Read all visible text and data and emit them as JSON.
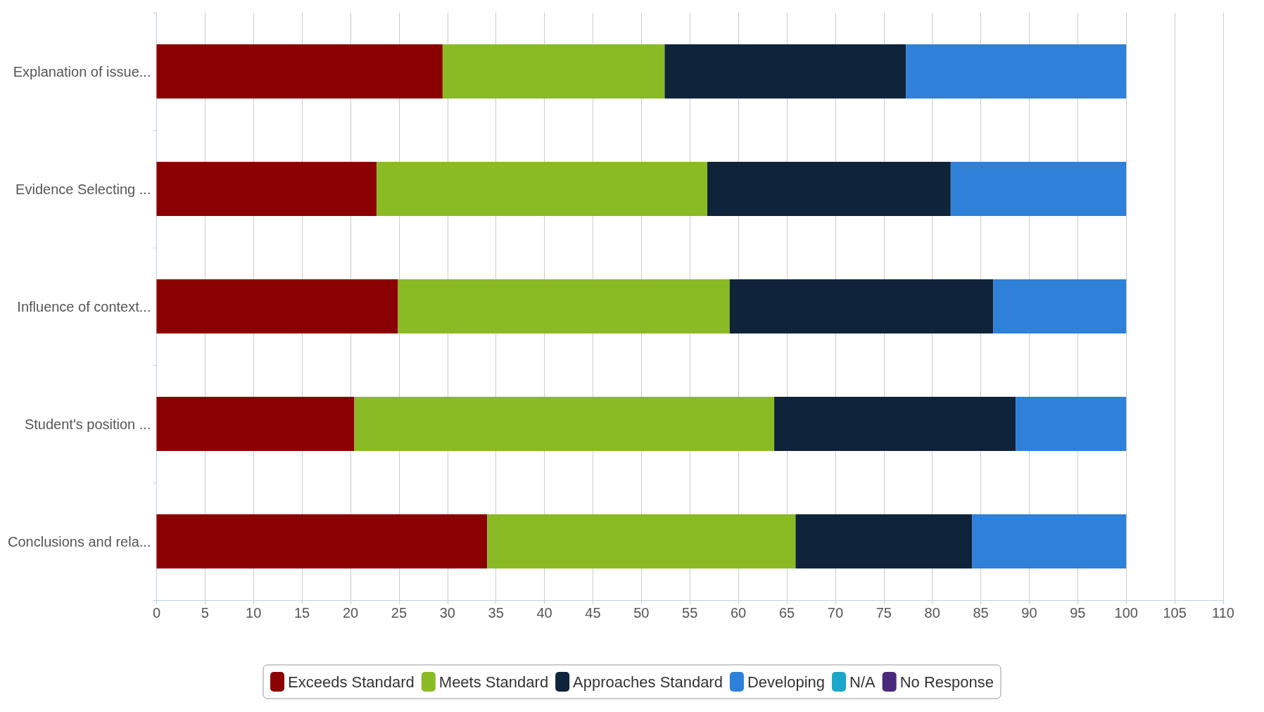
{
  "chart_data": {
    "type": "bar",
    "orientation": "horizontal",
    "stacked": true,
    "grid": "x",
    "legend": "bottom",
    "categories": [
      "Explanation of issue...",
      "Evidence Selecting ...",
      "Influence of context...",
      "Student's position ...",
      "Conclusions and rela..."
    ],
    "xlim": [
      0,
      110
    ],
    "xticks": [
      0,
      5,
      10,
      15,
      20,
      25,
      30,
      35,
      40,
      45,
      50,
      55,
      60,
      65,
      70,
      75,
      80,
      85,
      90,
      95,
      100,
      105,
      110
    ],
    "series": [
      {
        "name": "Exceeds Standard",
        "color": "#8b0000",
        "values": [
          29.5,
          22.7,
          24.9,
          20.4,
          34.1
        ]
      },
      {
        "name": "Meets Standard",
        "color": "#8aba24",
        "values": [
          22.9,
          34.1,
          34.2,
          43.3,
          31.8
        ]
      },
      {
        "name": "Approaches Standard",
        "color": "#0f233a",
        "values": [
          24.9,
          25.1,
          27.2,
          24.9,
          18.2
        ]
      },
      {
        "name": "Developing",
        "color": "#2f80d9",
        "values": [
          22.7,
          18.1,
          13.7,
          11.4,
          15.9
        ]
      },
      {
        "name": "N/A",
        "color": "#1aa7c9",
        "values": [
          0,
          0,
          0,
          0,
          0
        ]
      },
      {
        "name": "No Response",
        "color": "#4a2a7a",
        "values": [
          0,
          0,
          0,
          0,
          0
        ]
      }
    ]
  }
}
